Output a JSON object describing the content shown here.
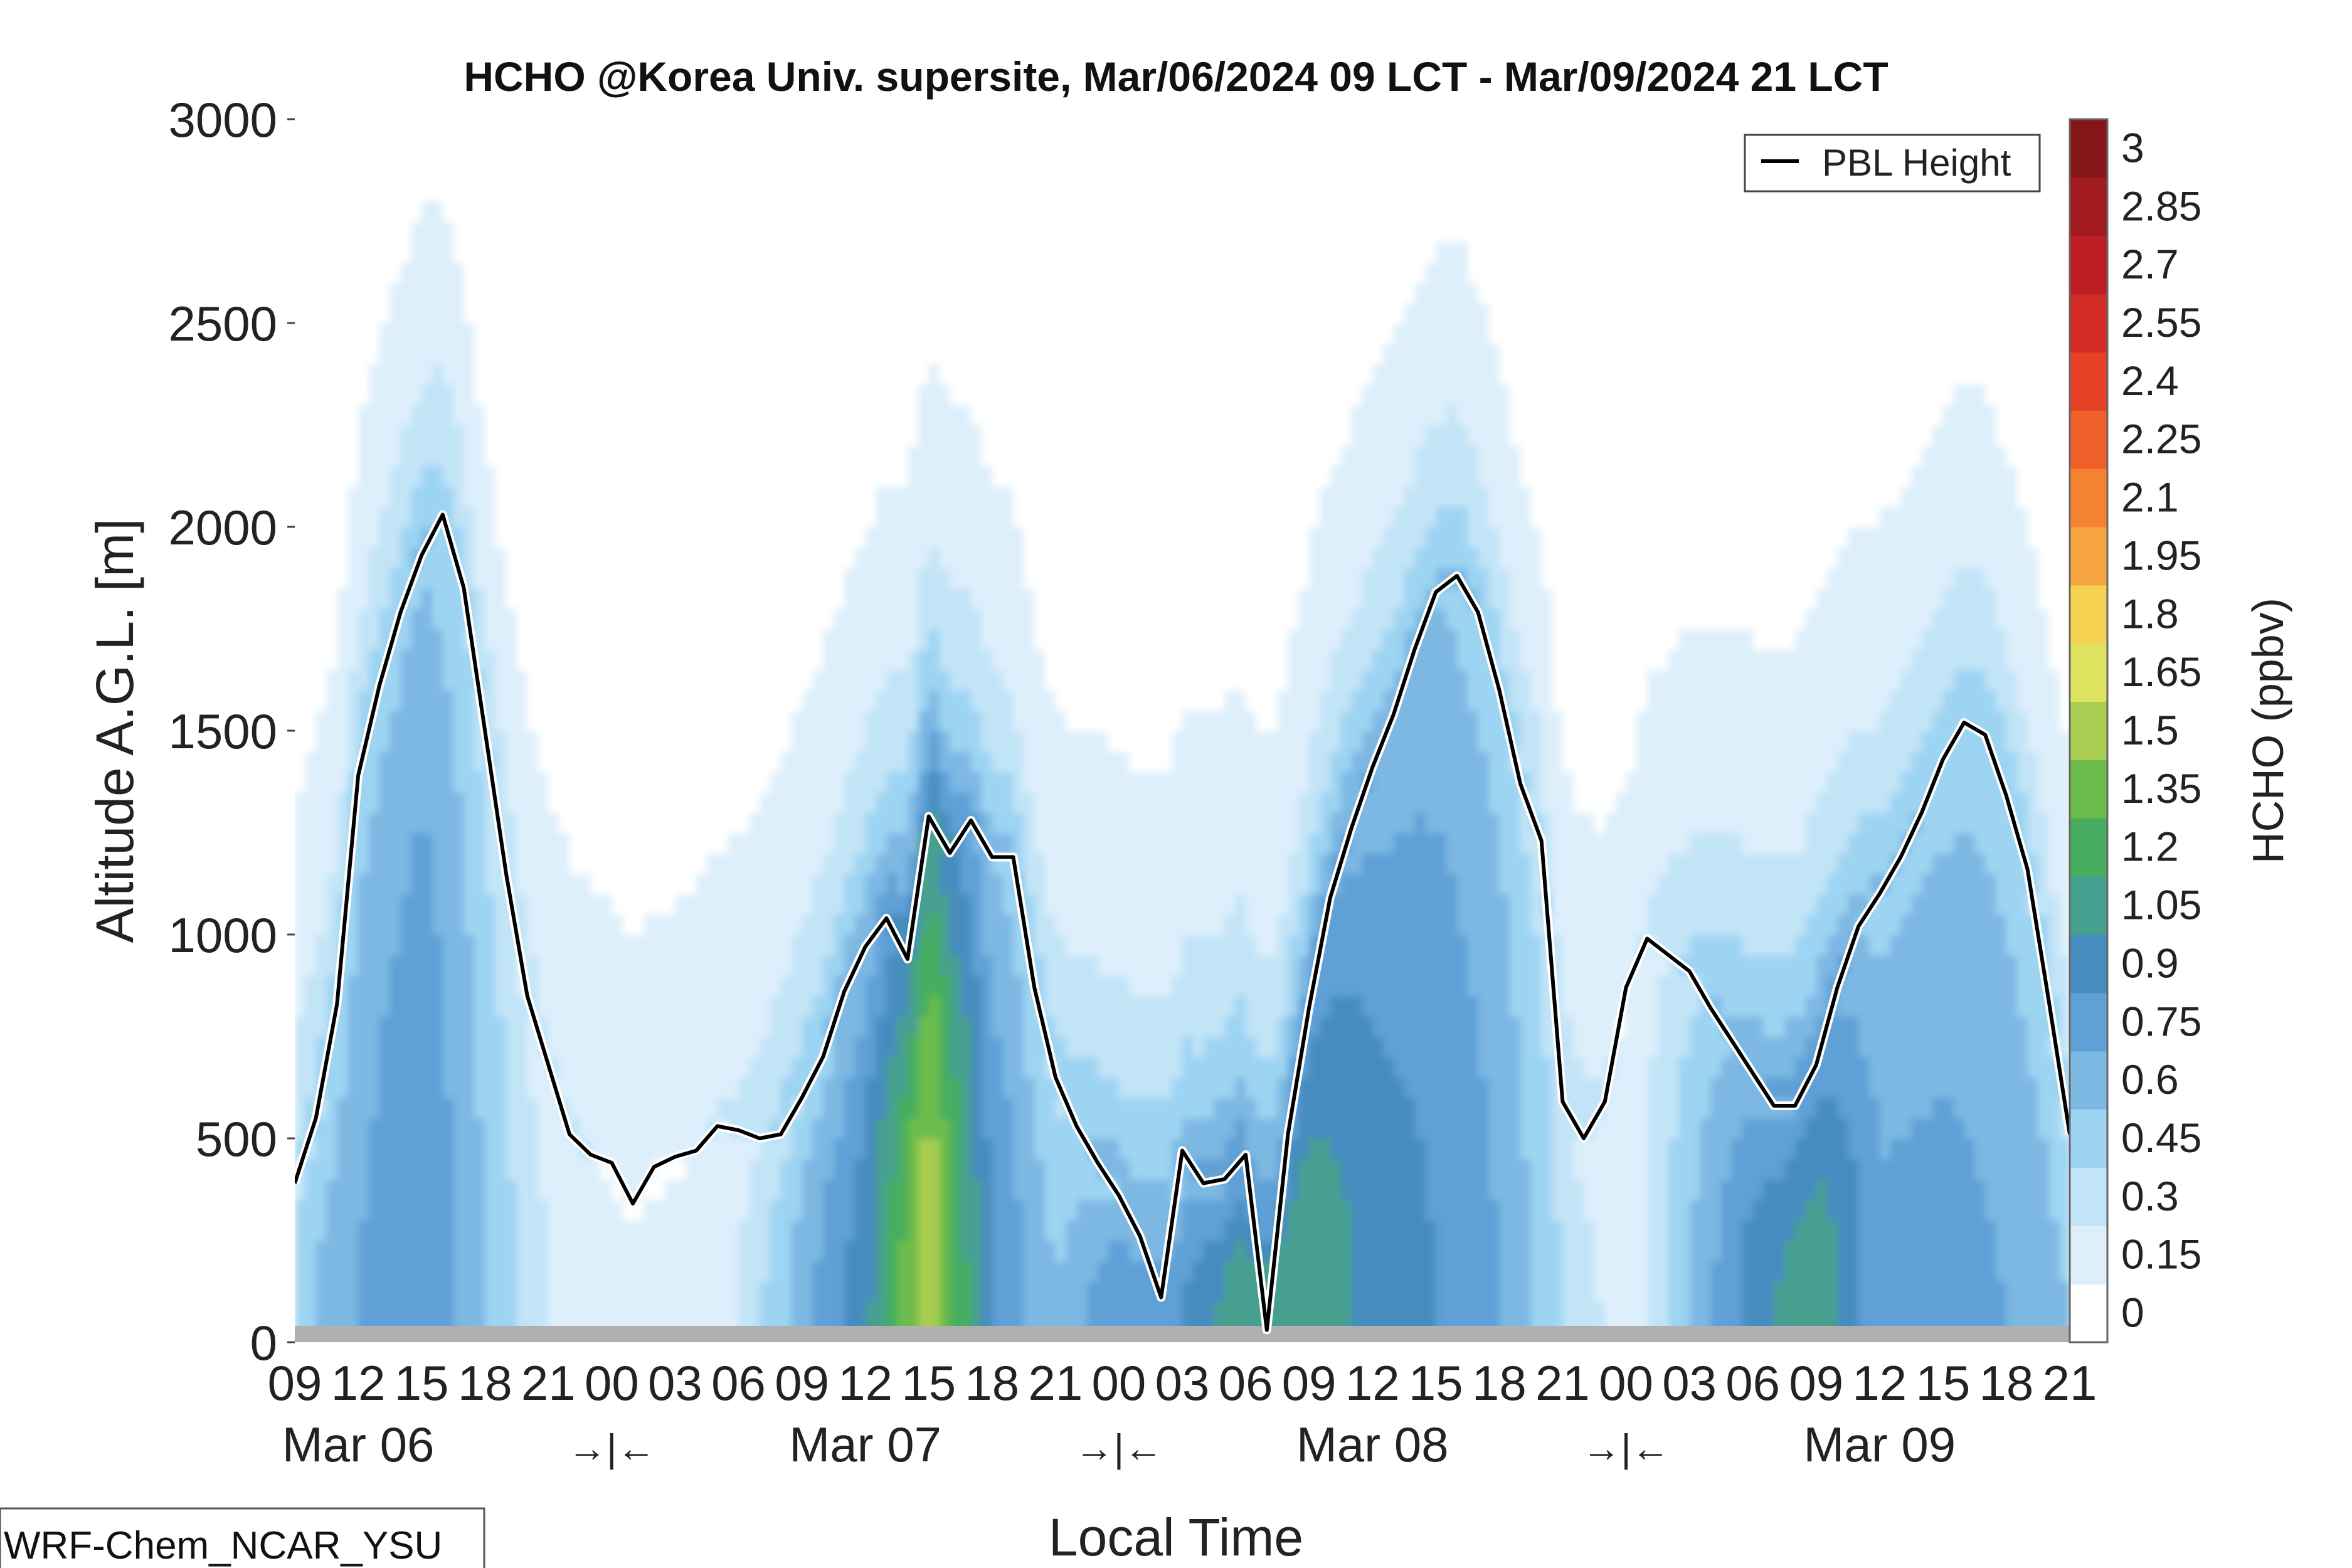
{
  "chart_data": {
    "type": "heatmap",
    "title": "HCHO @Korea Univ. supersite, Mar/06/2024 09 LCT - Mar/09/2024 21 LCT",
    "xlabel": "Local Time",
    "ylabel": "Altitude A.G.L. [m]",
    "ylim": [
      0,
      3000
    ],
    "yticks": [
      "0",
      "500",
      "1000",
      "1500",
      "2000",
      "2500",
      "3000"
    ],
    "xlim": [
      9,
      93
    ],
    "xticks": [
      9,
      12,
      15,
      18,
      21,
      24,
      27,
      30,
      33,
      36,
      39,
      42,
      45,
      48,
      51,
      54,
      57,
      60,
      63,
      66,
      69,
      72,
      75,
      78,
      81,
      84,
      87,
      90,
      93
    ],
    "xticklabels": [
      "09",
      "12",
      "15",
      "18",
      "21",
      "00",
      "03",
      "06",
      "09",
      "12",
      "15",
      "18",
      "21",
      "00",
      "03",
      "06",
      "09",
      "12",
      "15",
      "18",
      "21",
      "00",
      "03",
      "06",
      "09",
      "12",
      "15",
      "18",
      "21"
    ],
    "day_labels": [
      "Mar 06",
      "Mar 07",
      "Mar 08",
      "Mar 09"
    ],
    "day_label_hours": [
      12,
      36,
      60,
      84
    ],
    "day_breaks": [
      "→|←",
      "→|←",
      "→|←"
    ],
    "day_break_hours": [
      24,
      48,
      72
    ],
    "colorbar": {
      "label": "HCHO (ppbv)",
      "levels": [
        "0",
        "0.15",
        "0.3",
        "0.45",
        "0.6",
        "0.75",
        "0.9",
        "1.05",
        "1.2",
        "1.35",
        "1.5",
        "1.65",
        "1.8",
        "1.95",
        "2.1",
        "2.25",
        "2.4",
        "2.55",
        "2.7",
        "2.85",
        "3"
      ],
      "colors": [
        "#ffffff",
        "#ddeffb",
        "#c2e4f7",
        "#9dd4f2",
        "#7db8e3",
        "#5fa0d6",
        "#468cbf",
        "#46a08f",
        "#47ad61",
        "#6cbc4b",
        "#a8cd50",
        "#dde35e",
        "#f6d252",
        "#f6a440",
        "#f48231",
        "#ee5f2a",
        "#e44126",
        "#d32b26",
        "#bd1e24",
        "#a01a1f",
        "#861517"
      ]
    },
    "legend": {
      "entries": [
        "PBL Height"
      ],
      "position": "top-right"
    },
    "pbl_height": {
      "name": "PBL Height",
      "x": [
        9,
        10,
        11,
        12,
        13,
        14,
        15,
        16,
        17,
        18,
        19,
        20,
        21,
        22,
        23,
        24,
        25,
        26,
        27,
        28,
        29,
        30,
        31,
        32,
        33,
        34,
        35,
        36,
        37,
        38,
        39,
        40,
        41,
        42,
        43,
        44,
        45,
        46,
        47,
        48,
        49,
        50,
        51,
        52,
        53,
        54,
        55,
        56,
        57,
        58,
        59,
        60,
        61,
        62,
        63,
        64,
        65,
        66,
        67,
        68,
        69,
        70,
        71,
        72,
        73,
        74,
        75,
        76,
        77,
        78,
        79,
        80,
        81,
        82,
        83,
        84,
        85,
        86,
        87,
        88,
        89,
        90,
        91,
        92,
        93
      ],
      "y": [
        390,
        550,
        830,
        1390,
        1610,
        1790,
        1930,
        2030,
        1850,
        1500,
        1150,
        850,
        680,
        510,
        460,
        440,
        340,
        430,
        455,
        470,
        530,
        520,
        500,
        510,
        600,
        700,
        860,
        970,
        1040,
        940,
        1290,
        1200,
        1280,
        1190,
        1190,
        870,
        650,
        530,
        440,
        360,
        260,
        110,
        470,
        390,
        400,
        460,
        30,
        510,
        820,
        1090,
        1260,
        1410,
        1540,
        1700,
        1840,
        1880,
        1790,
        1600,
        1370,
        1230,
        590,
        500,
        590,
        870,
        990,
        950,
        910,
        820,
        740,
        660,
        580,
        580,
        680,
        870,
        1020,
        1100,
        1190,
        1300,
        1430,
        1520,
        1490,
        1340,
        1160,
        840,
        510
      ]
    },
    "hcho_profiles": {
      "description_x": "hour",
      "x": [
        9,
        12,
        15,
        18,
        21,
        24,
        27,
        30,
        33,
        36,
        39,
        42,
        45,
        48,
        51,
        54,
        57,
        60,
        63,
        66,
        69,
        72,
        75,
        78,
        81,
        84,
        87,
        90,
        93
      ],
      "surface_ppbv": [
        0.55,
        0.75,
        0.9,
        0.6,
        0.3,
        0.2,
        0.2,
        0.3,
        0.7,
        1.0,
        1.65,
        0.9,
        0.6,
        0.9,
        0.9,
        1.2,
        1.2,
        1.0,
        0.9,
        0.75,
        0.45,
        0.2,
        0.6,
        1.0,
        1.2,
        0.8,
        0.8,
        0.75,
        0.6
      ]
    }
  },
  "model_label": "WRF-Chem_NCAR_YSU",
  "colors": {
    "pbl_line": "#000000",
    "pbl_halo": "#ffffff",
    "ground": "#b0b0b0"
  }
}
